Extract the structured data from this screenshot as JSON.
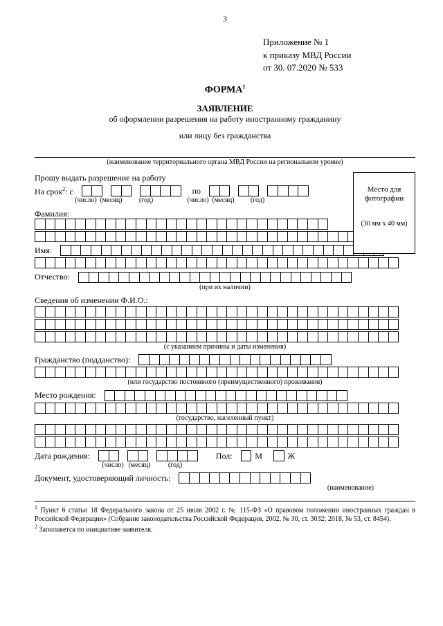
{
  "page_number": "3",
  "appendix": {
    "line1": "Приложение № 1",
    "line2": "к приказу МВД России",
    "line3": "от   30. 07.2020 № 533"
  },
  "forma": "ФОРМА",
  "forma_sup": "1",
  "title": "ЗАЯВЛЕНИЕ",
  "subtitle1": "об оформлении разрешения на работу иностранному гражданину",
  "subtitle2": "или лицу без гражданства",
  "org_caption": "(наименование территориального органа МВД России на региональном уровне)",
  "request": "Прошу выдать разрешение на работу",
  "period": {
    "label": "На срок",
    "sup": "2",
    "colon_s": ": с",
    "po": "по",
    "chislo": "(число)",
    "mesyac": "(месяц)",
    "god": "(год)"
  },
  "photo": {
    "l1": "Место для",
    "l2": "фотографии",
    "dim": "(30 мм x 40 мм)"
  },
  "surname": "Фамилия:",
  "name": "Имя:",
  "patronymic": "Отчество:",
  "patronymic_note": "(при их наличии)",
  "fio_change": "Сведения об изменении Ф.И.О.:",
  "fio_change_note": "(с указанием причины и даты изменения)",
  "citizenship": "Гражданство (подданство):",
  "citizenship_note": "(или государство постоянного (преимущественного) проживания)",
  "birthplace": "Место рождения:",
  "birthplace_note": "(государство, населенный пункт)",
  "dob": "Дата рождения:",
  "sex": {
    "label": "Пол:",
    "m": "М",
    "f": "Ж"
  },
  "id_doc": "Документ, удостоверяющий личность:",
  "id_doc_note": "(наименование)",
  "footnote1_pre": "Пункт 6 статьи 18 Федерального закона от 25 июля 2002 г. № 115-ФЗ «О правовом положении иностранных граждан в Российской Федерации» (Собрание законодательства Российской Федерации, 2002, № 30, ст. 3032; 2018, № 53, ст. 8454).",
  "footnote2": "Заполняется по инициативе заявителя.",
  "layout": {
    "full_cells": 36,
    "short_cells_after_surname": 29,
    "short_cells_after_name": 32,
    "short_cells_after_pat": 27,
    "cells_after_citizenship": 19,
    "cells_after_birthplace": 24,
    "cells_after_iddoc": 13
  }
}
